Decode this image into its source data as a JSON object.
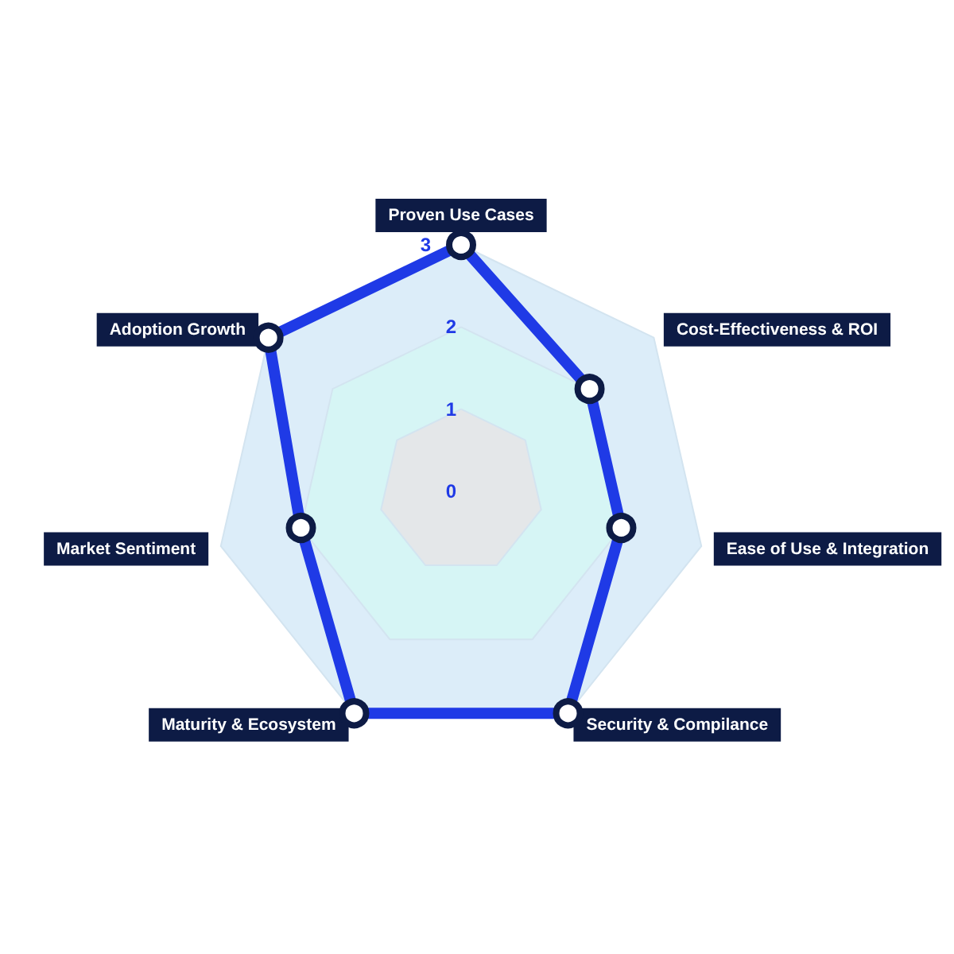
{
  "chart_data": {
    "type": "radar",
    "categories": [
      "Proven Use Cases",
      "Cost-Effectiveness & ROI",
      "Ease of Use & Integration",
      "Security & Compilance",
      "Maturity & Ecosystem",
      "Market Sentiment",
      "Adoption Growth"
    ],
    "series": [
      {
        "color": "#1f3ae6",
        "values": [
          3,
          2,
          2,
          3,
          3,
          2,
          3
        ]
      }
    ],
    "ylim": [
      0,
      3
    ],
    "yticks": [
      0,
      1,
      2,
      3
    ],
    "grid": true,
    "marker": "circle",
    "line_style": "solid"
  }
}
